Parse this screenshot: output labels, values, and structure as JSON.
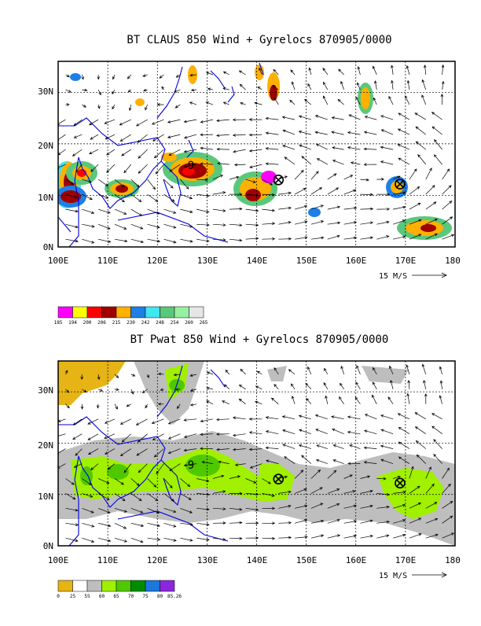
{
  "panel_top": {
    "title": "BT CLAUS 850 Wind + Gyrelocs 870905/0000",
    "x_ticks": [
      "100E",
      "110E",
      "120E",
      "130E",
      "140E",
      "150E",
      "160E",
      "170E",
      "180"
    ],
    "y_ticks": [
      "0N",
      "10N",
      "20N",
      "30N"
    ],
    "ref_vector": "15 M/S",
    "typhoon_label": "9",
    "colorbar": {
      "labels": [
        "185",
        "194",
        "200",
        "206",
        "215",
        "230",
        "242",
        "248",
        "254",
        "260",
        "265"
      ],
      "colors": [
        "#ff00ff",
        "#ffff00",
        "#ff0000",
        "#a00000",
        "#ffb000",
        "#1e80e6",
        "#40e6f0",
        "#5ac87a",
        "#96f0a0",
        "#e6e6e6"
      ]
    }
  },
  "panel_bottom": {
    "title": "BT Pwat 850 Wind + Gyrelocs 870905/0000",
    "x_ticks": [
      "100E",
      "110E",
      "120E",
      "130E",
      "140E",
      "150E",
      "160E",
      "170E",
      "180"
    ],
    "y_ticks": [
      "0N",
      "10N",
      "20N",
      "30N"
    ],
    "ref_vector": "15 M/S",
    "typhoon_label": "9",
    "colorbar": {
      "labels": [
        "0",
        "25",
        "55",
        "60",
        "65",
        "70",
        "75",
        "80",
        "85.26"
      ],
      "colors": [
        "#e6b414",
        "#ffffff",
        "#bebebe",
        "#a0f000",
        "#50c800",
        "#008c00",
        "#1e78dc",
        "#8c28dc"
      ]
    }
  },
  "gyre_markers": [
    {
      "lon": 144.4,
      "lat": 13.0
    },
    {
      "lon": 168.9,
      "lat": 12.2
    }
  ],
  "map_extent": {
    "lon": [
      100,
      180
    ],
    "lat": [
      0,
      36
    ]
  }
}
